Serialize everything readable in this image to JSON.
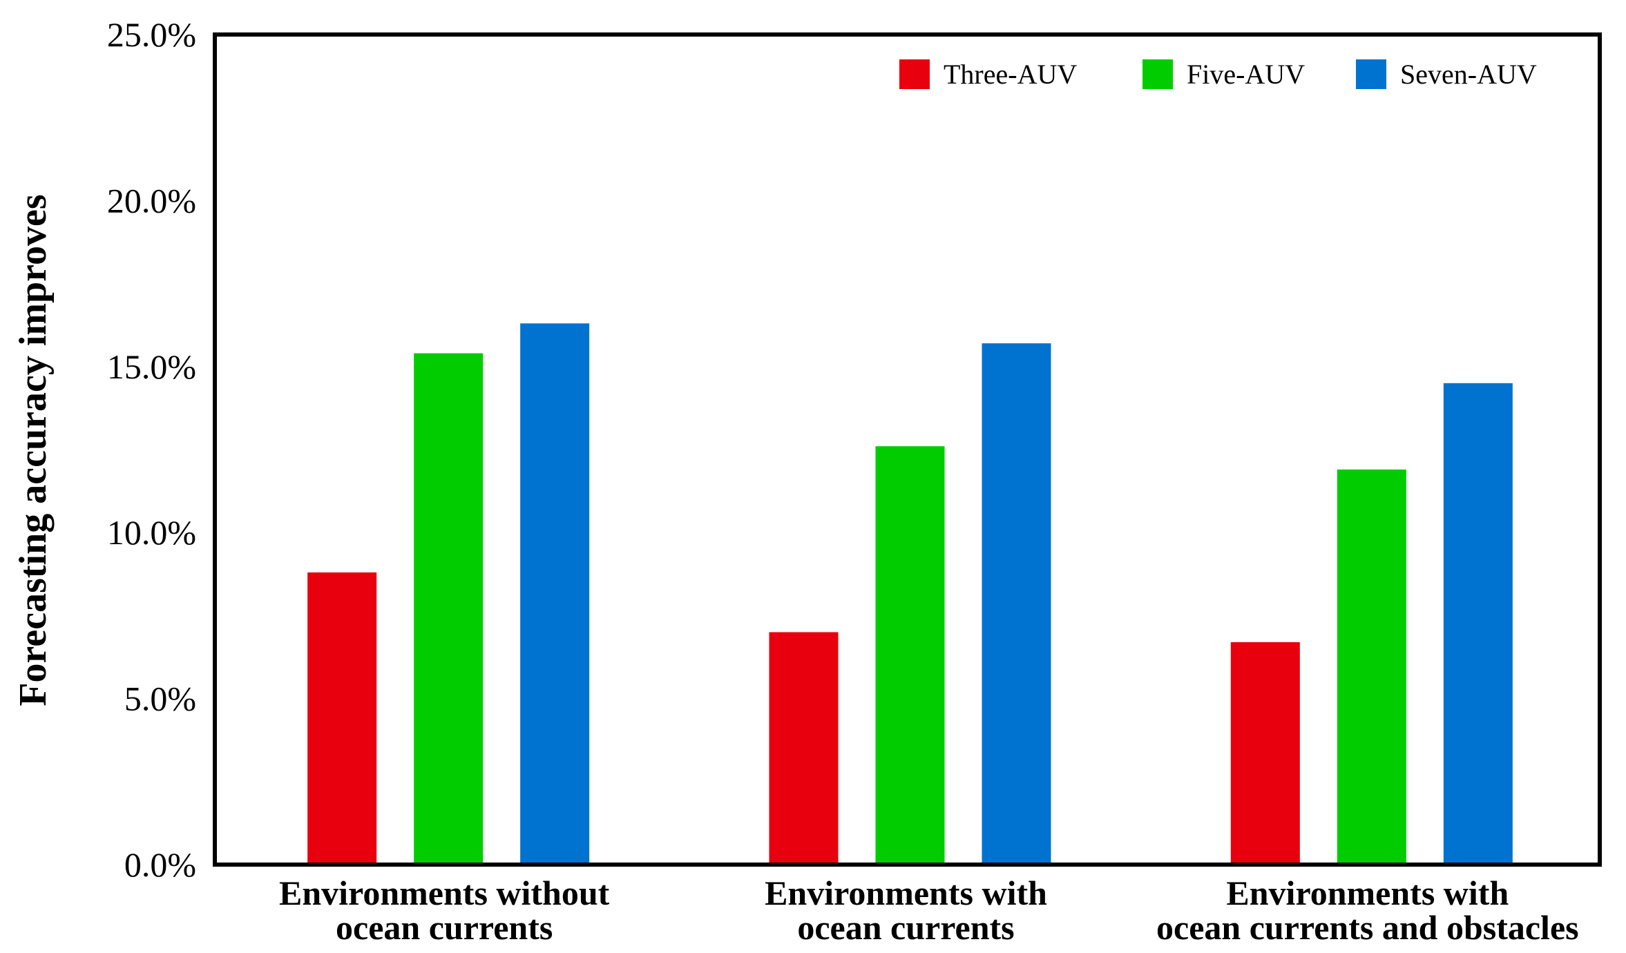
{
  "chart_data": {
    "type": "bar",
    "title": "",
    "xlabel": "",
    "ylabel": "Forecasting accuracy improves",
    "ylim": [
      0,
      25
    ],
    "y_ticks": [
      "0.0%",
      "5.0%",
      "10.0%",
      "15.0%",
      "20.0%",
      "25.0%"
    ],
    "grid": false,
    "legend_position": "top-right",
    "categories": [
      [
        "Environments without",
        "ocean currents"
      ],
      [
        "Environments with",
        "ocean currents"
      ],
      [
        "Environments with",
        "ocean currents and obstacles"
      ]
    ],
    "series": [
      {
        "name": "Three-AUV",
        "color": "#e8000e",
        "values": [
          8.8,
          7.0,
          6.7
        ]
      },
      {
        "name": "Five-AUV",
        "color": "#00cc00",
        "values": [
          15.4,
          12.6,
          11.9
        ]
      },
      {
        "name": "Seven-AUV",
        "color": "#0073d0",
        "values": [
          16.3,
          15.7,
          14.5
        ]
      }
    ]
  }
}
